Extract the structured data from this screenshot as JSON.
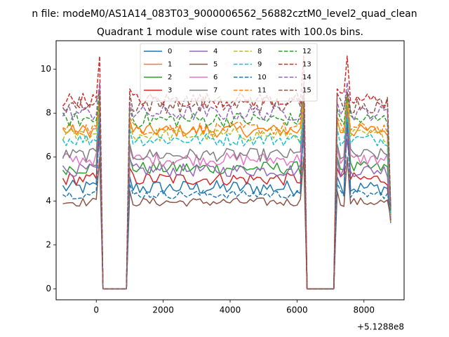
{
  "chart_data": {
    "type": "line",
    "suptitle": "n file: modeM0/AS1A14_083T03_9000006562_56882cztM0_level2_quad_clean",
    "title": "Quadrant 1 module wise count rates with 100.0s bins.",
    "xlabel": "",
    "ylabel": "",
    "x_offset_label": "+5.1288e8",
    "xlim": [
      -1200,
      9200
    ],
    "ylim": [
      -0.5,
      11.3
    ],
    "xticks": [
      0,
      2000,
      4000,
      6000,
      8000
    ],
    "xtick_labels": [
      "0",
      "2000",
      "4000",
      "6000",
      "8000"
    ],
    "yticks": [
      0,
      2,
      4,
      6,
      8,
      10
    ],
    "ytick_labels": [
      "0",
      "2",
      "4",
      "6",
      "8",
      "10"
    ],
    "grid": false,
    "legend_placement": "upper-center",
    "legend_columns": 4,
    "x_range": [
      -1000,
      8800
    ],
    "bin_width": 100,
    "gaps": [
      [
        200,
        900
      ],
      [
        6300,
        7100
      ]
    ],
    "series": [
      {
        "name": "0",
        "color": "#1f77b4",
        "dash": "solid",
        "level": 4.6,
        "amp": 0.35,
        "peak": 8.8
      },
      {
        "name": "1",
        "color": "#ff7f0e",
        "dash": "solid",
        "level": 7.2,
        "amp": 0.3,
        "peak": 8.8
      },
      {
        "name": "2",
        "color": "#2ca02c",
        "dash": "solid",
        "level": 5.5,
        "amp": 0.3,
        "peak": 8.3
      },
      {
        "name": "3",
        "color": "#d62728",
        "dash": "solid",
        "level": 5.0,
        "amp": 0.3,
        "peak": 7.6
      },
      {
        "name": "4",
        "color": "#9467bd",
        "dash": "solid",
        "level": 5.4,
        "amp": 0.3,
        "peak": 6.8
      },
      {
        "name": "5",
        "color": "#8c564b",
        "dash": "solid",
        "level": 3.95,
        "amp": 0.2,
        "peak": 6.0
      },
      {
        "name": "6",
        "color": "#e377c2",
        "dash": "solid",
        "level": 5.9,
        "amp": 0.3,
        "peak": 8.0
      },
      {
        "name": "7",
        "color": "#7f7f7f",
        "dash": "solid",
        "level": 6.1,
        "amp": 0.3,
        "peak": 8.4
      },
      {
        "name": "8",
        "color": "#bcbd22",
        "dash": "dashed",
        "level": 7.0,
        "amp": 0.3,
        "peak": 8.6
      },
      {
        "name": "9",
        "color": "#17becf",
        "dash": "dashed",
        "level": 6.8,
        "amp": 0.3,
        "peak": 7.8
      },
      {
        "name": "10",
        "color": "#1f77b4",
        "dash": "dashed",
        "level": 4.3,
        "amp": 0.2,
        "peak": 7.6
      },
      {
        "name": "11",
        "color": "#ff7f0e",
        "dash": "dashed",
        "level": 7.3,
        "amp": 0.3,
        "peak": 8.8
      },
      {
        "name": "12",
        "color": "#2ca02c",
        "dash": "dashed",
        "level": 7.7,
        "amp": 0.35,
        "peak": 8.8
      },
      {
        "name": "13",
        "color": "#d62728",
        "dash": "dashed",
        "level": 8.6,
        "amp": 0.35,
        "peak": 10.6
      },
      {
        "name": "14",
        "color": "#9467bd",
        "dash": "dashed",
        "level": 8.0,
        "amp": 0.35,
        "peak": 9.4
      },
      {
        "name": "15",
        "color": "#8c564b",
        "dash": "dashed",
        "level": 8.4,
        "amp": 0.4,
        "peak": 9.0
      }
    ]
  }
}
